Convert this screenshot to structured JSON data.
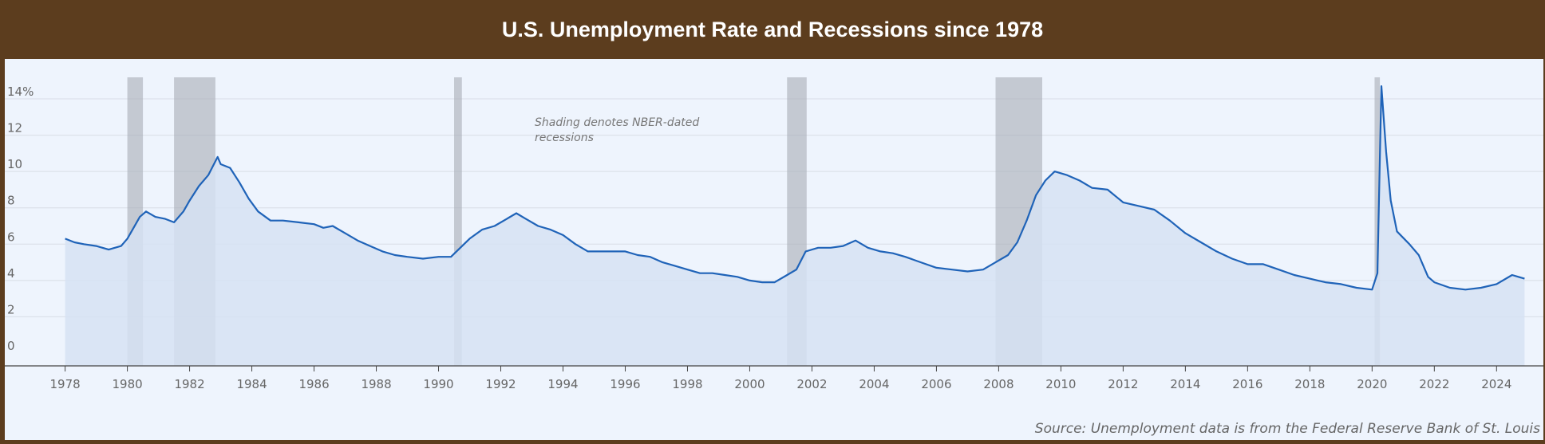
{
  "header": {
    "title": "U.S. Unemployment Rate and Recessions since 1978"
  },
  "source_note": "Source: Unemployment data is from the Federal Reserve Bank of St. Louis",
  "annotation": [
    "Shading denotes NBER-dated",
    "recessions"
  ],
  "colors": {
    "header_bg": "#5c3d1e",
    "panel_bg": "#eef4fd",
    "line": "#1f63b8",
    "area": "#d6e2f3",
    "recession": "#a9afb8",
    "grid": "#d8dde6",
    "axis": "#444444"
  },
  "chart_data": {
    "type": "area",
    "title": "U.S. Unemployment Rate and Recessions since 1978",
    "xlabel": "",
    "ylabel": "",
    "xlim": [
      1977.6,
      2025.3
    ],
    "ylim": [
      0,
      14
    ],
    "grid": true,
    "y_ticks": [
      {
        "value": 0,
        "label": "0"
      },
      {
        "value": 2,
        "label": "2"
      },
      {
        "value": 4,
        "label": "4"
      },
      {
        "value": 6,
        "label": "6"
      },
      {
        "value": 8,
        "label": "8"
      },
      {
        "value": 10,
        "label": "10"
      },
      {
        "value": 12,
        "label": "12"
      },
      {
        "value": 14,
        "label": "14%"
      }
    ],
    "x_ticks": [
      1978,
      1980,
      1982,
      1984,
      1986,
      1988,
      1990,
      1992,
      1994,
      1996,
      1998,
      2000,
      2002,
      2004,
      2006,
      2008,
      2010,
      2012,
      2014,
      2016,
      2018,
      2020,
      2022,
      2024
    ],
    "recessions": [
      {
        "start": 1980.0,
        "end": 1980.5
      },
      {
        "start": 1981.5,
        "end": 1982.83
      },
      {
        "start": 1990.5,
        "end": 1990.75
      },
      {
        "start": 2001.2,
        "end": 2001.83
      },
      {
        "start": 2007.9,
        "end": 2009.4
      },
      {
        "start": 2020.08,
        "end": 2020.25
      }
    ],
    "series": [
      {
        "values": [
          [
            1978.0,
            6.3
          ],
          [
            1978.3,
            6.1
          ],
          [
            1978.6,
            6.0
          ],
          [
            1979.0,
            5.9
          ],
          [
            1979.4,
            5.7
          ],
          [
            1979.8,
            5.9
          ],
          [
            1980.0,
            6.3
          ],
          [
            1980.2,
            6.9
          ],
          [
            1980.4,
            7.5
          ],
          [
            1980.6,
            7.8
          ],
          [
            1980.9,
            7.5
          ],
          [
            1981.2,
            7.4
          ],
          [
            1981.5,
            7.2
          ],
          [
            1981.8,
            7.8
          ],
          [
            1982.0,
            8.4
          ],
          [
            1982.3,
            9.2
          ],
          [
            1982.6,
            9.8
          ],
          [
            1982.9,
            10.8
          ],
          [
            1983.0,
            10.4
          ],
          [
            1983.3,
            10.2
          ],
          [
            1983.6,
            9.4
          ],
          [
            1983.9,
            8.5
          ],
          [
            1984.2,
            7.8
          ],
          [
            1984.6,
            7.3
          ],
          [
            1985.0,
            7.3
          ],
          [
            1985.5,
            7.2
          ],
          [
            1986.0,
            7.1
          ],
          [
            1986.3,
            6.9
          ],
          [
            1986.6,
            7.0
          ],
          [
            1987.0,
            6.6
          ],
          [
            1987.4,
            6.2
          ],
          [
            1987.8,
            5.9
          ],
          [
            1988.2,
            5.6
          ],
          [
            1988.6,
            5.4
          ],
          [
            1989.0,
            5.3
          ],
          [
            1989.5,
            5.2
          ],
          [
            1990.0,
            5.3
          ],
          [
            1990.4,
            5.3
          ],
          [
            1990.7,
            5.8
          ],
          [
            1991.0,
            6.3
          ],
          [
            1991.4,
            6.8
          ],
          [
            1991.8,
            7.0
          ],
          [
            1992.2,
            7.4
          ],
          [
            1992.5,
            7.7
          ],
          [
            1992.8,
            7.4
          ],
          [
            1993.2,
            7.0
          ],
          [
            1993.6,
            6.8
          ],
          [
            1994.0,
            6.5
          ],
          [
            1994.4,
            6.0
          ],
          [
            1994.8,
            5.6
          ],
          [
            1995.2,
            5.6
          ],
          [
            1995.6,
            5.6
          ],
          [
            1996.0,
            5.6
          ],
          [
            1996.4,
            5.4
          ],
          [
            1996.8,
            5.3
          ],
          [
            1997.2,
            5.0
          ],
          [
            1997.6,
            4.8
          ],
          [
            1998.0,
            4.6
          ],
          [
            1998.4,
            4.4
          ],
          [
            1998.8,
            4.4
          ],
          [
            1999.2,
            4.3
          ],
          [
            1999.6,
            4.2
          ],
          [
            2000.0,
            4.0
          ],
          [
            2000.4,
            3.9
          ],
          [
            2000.8,
            3.9
          ],
          [
            2001.2,
            4.3
          ],
          [
            2001.5,
            4.6
          ],
          [
            2001.8,
            5.6
          ],
          [
            2002.2,
            5.8
          ],
          [
            2002.6,
            5.8
          ],
          [
            2003.0,
            5.9
          ],
          [
            2003.4,
            6.2
          ],
          [
            2003.8,
            5.8
          ],
          [
            2004.2,
            5.6
          ],
          [
            2004.6,
            5.5
          ],
          [
            2005.0,
            5.3
          ],
          [
            2005.5,
            5.0
          ],
          [
            2006.0,
            4.7
          ],
          [
            2006.5,
            4.6
          ],
          [
            2007.0,
            4.5
          ],
          [
            2007.5,
            4.6
          ],
          [
            2007.9,
            5.0
          ],
          [
            2008.3,
            5.4
          ],
          [
            2008.6,
            6.1
          ],
          [
            2008.9,
            7.3
          ],
          [
            2009.2,
            8.7
          ],
          [
            2009.5,
            9.5
          ],
          [
            2009.8,
            10.0
          ],
          [
            2010.2,
            9.8
          ],
          [
            2010.6,
            9.5
          ],
          [
            2011.0,
            9.1
          ],
          [
            2011.5,
            9.0
          ],
          [
            2012.0,
            8.3
          ],
          [
            2012.5,
            8.1
          ],
          [
            2013.0,
            7.9
          ],
          [
            2013.5,
            7.3
          ],
          [
            2014.0,
            6.6
          ],
          [
            2014.5,
            6.1
          ],
          [
            2015.0,
            5.6
          ],
          [
            2015.5,
            5.2
          ],
          [
            2016.0,
            4.9
          ],
          [
            2016.5,
            4.9
          ],
          [
            2017.0,
            4.6
          ],
          [
            2017.5,
            4.3
          ],
          [
            2018.0,
            4.1
          ],
          [
            2018.5,
            3.9
          ],
          [
            2019.0,
            3.8
          ],
          [
            2019.5,
            3.6
          ],
          [
            2020.0,
            3.5
          ],
          [
            2020.17,
            4.4
          ],
          [
            2020.3,
            14.7
          ],
          [
            2020.45,
            11.1
          ],
          [
            2020.6,
            8.4
          ],
          [
            2020.8,
            6.7
          ],
          [
            2021.2,
            6.0
          ],
          [
            2021.5,
            5.4
          ],
          [
            2021.8,
            4.2
          ],
          [
            2022.0,
            3.9
          ],
          [
            2022.5,
            3.6
          ],
          [
            2023.0,
            3.5
          ],
          [
            2023.5,
            3.6
          ],
          [
            2024.0,
            3.8
          ],
          [
            2024.5,
            4.3
          ],
          [
            2024.9,
            4.1
          ]
        ]
      }
    ]
  }
}
